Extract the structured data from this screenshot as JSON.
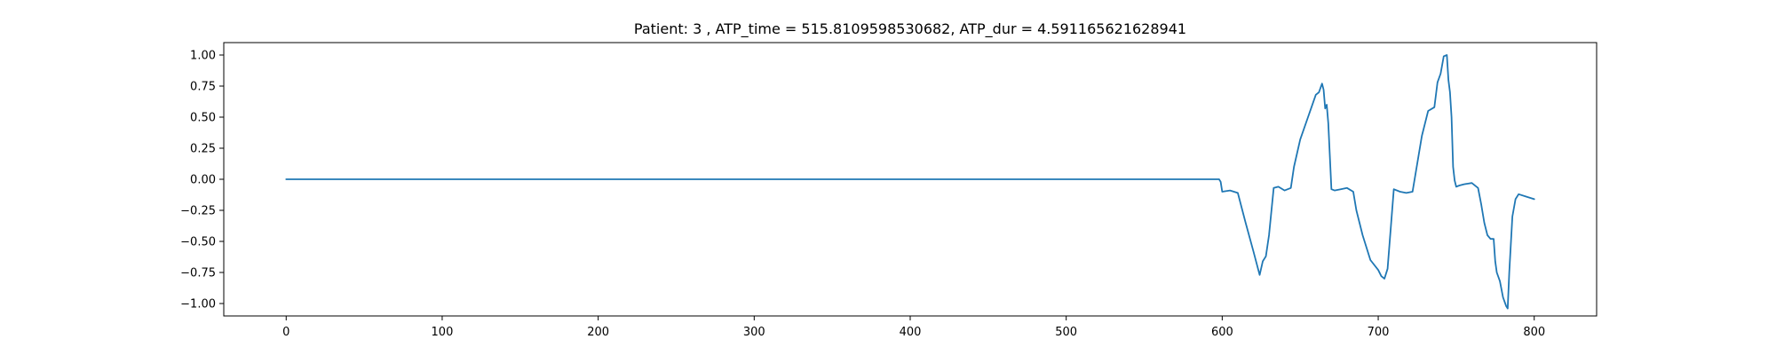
{
  "chart_data": {
    "type": "line",
    "title": "Patient: 3 , ATP_time = 515.8109598530682, ATP_dur = 4.591165621628941",
    "xlabel": "",
    "ylabel": "",
    "xlim": [
      -40,
      840
    ],
    "ylim": [
      -1.1,
      1.1
    ],
    "xticks": [
      0,
      100,
      200,
      300,
      400,
      500,
      600,
      700,
      800
    ],
    "xtick_labels": [
      "0",
      "100",
      "200",
      "300",
      "400",
      "500",
      "600",
      "700",
      "800"
    ],
    "yticks": [
      1.0,
      0.75,
      0.5,
      0.25,
      0.0,
      -0.25,
      -0.5,
      -0.75,
      -1.0
    ],
    "ytick_labels": [
      "1.00",
      "0.75",
      "0.50",
      "0.25",
      "0.00",
      "−0.25",
      "−0.50",
      "−0.75",
      "−1.00"
    ],
    "grid": false,
    "series": [
      {
        "color": "#1f77b4",
        "x": [
          0,
          598,
          599,
          600,
          605,
          610,
          615,
          620,
          624,
          626,
          628,
          630,
          633,
          636,
          640,
          644,
          646,
          650,
          655,
          660,
          662,
          664,
          665,
          666,
          667,
          668,
          670,
          672,
          676,
          680,
          684,
          686,
          690,
          695,
          700,
          702,
          704,
          706,
          708,
          710,
          714,
          718,
          722,
          726,
          728,
          732,
          736,
          738,
          740,
          742,
          744,
          745,
          746,
          747,
          748,
          749,
          750,
          752,
          755,
          760,
          764,
          766,
          768,
          770,
          772,
          774,
          775,
          776,
          778,
          780,
          782,
          783,
          784,
          786,
          788,
          790,
          795,
          800
        ],
        "y": [
          0.0,
          0.0,
          -0.02,
          -0.1,
          -0.09,
          -0.11,
          -0.35,
          -0.58,
          -0.77,
          -0.66,
          -0.62,
          -0.45,
          -0.07,
          -0.06,
          -0.09,
          -0.07,
          0.1,
          0.32,
          0.5,
          0.68,
          0.7,
          0.77,
          0.72,
          0.57,
          0.6,
          0.45,
          -0.08,
          -0.09,
          -0.08,
          -0.07,
          -0.1,
          -0.25,
          -0.45,
          -0.65,
          -0.73,
          -0.78,
          -0.8,
          -0.72,
          -0.4,
          -0.08,
          -0.1,
          -0.11,
          -0.1,
          0.2,
          0.35,
          0.55,
          0.58,
          0.78,
          0.85,
          0.99,
          1.0,
          0.8,
          0.7,
          0.5,
          0.1,
          -0.01,
          -0.06,
          -0.05,
          -0.04,
          -0.03,
          -0.07,
          -0.2,
          -0.35,
          -0.45,
          -0.48,
          -0.48,
          -0.66,
          -0.75,
          -0.82,
          -0.95,
          -1.02,
          -1.04,
          -0.75,
          -0.3,
          -0.16,
          -0.12,
          -0.14,
          -0.16
        ]
      }
    ]
  }
}
